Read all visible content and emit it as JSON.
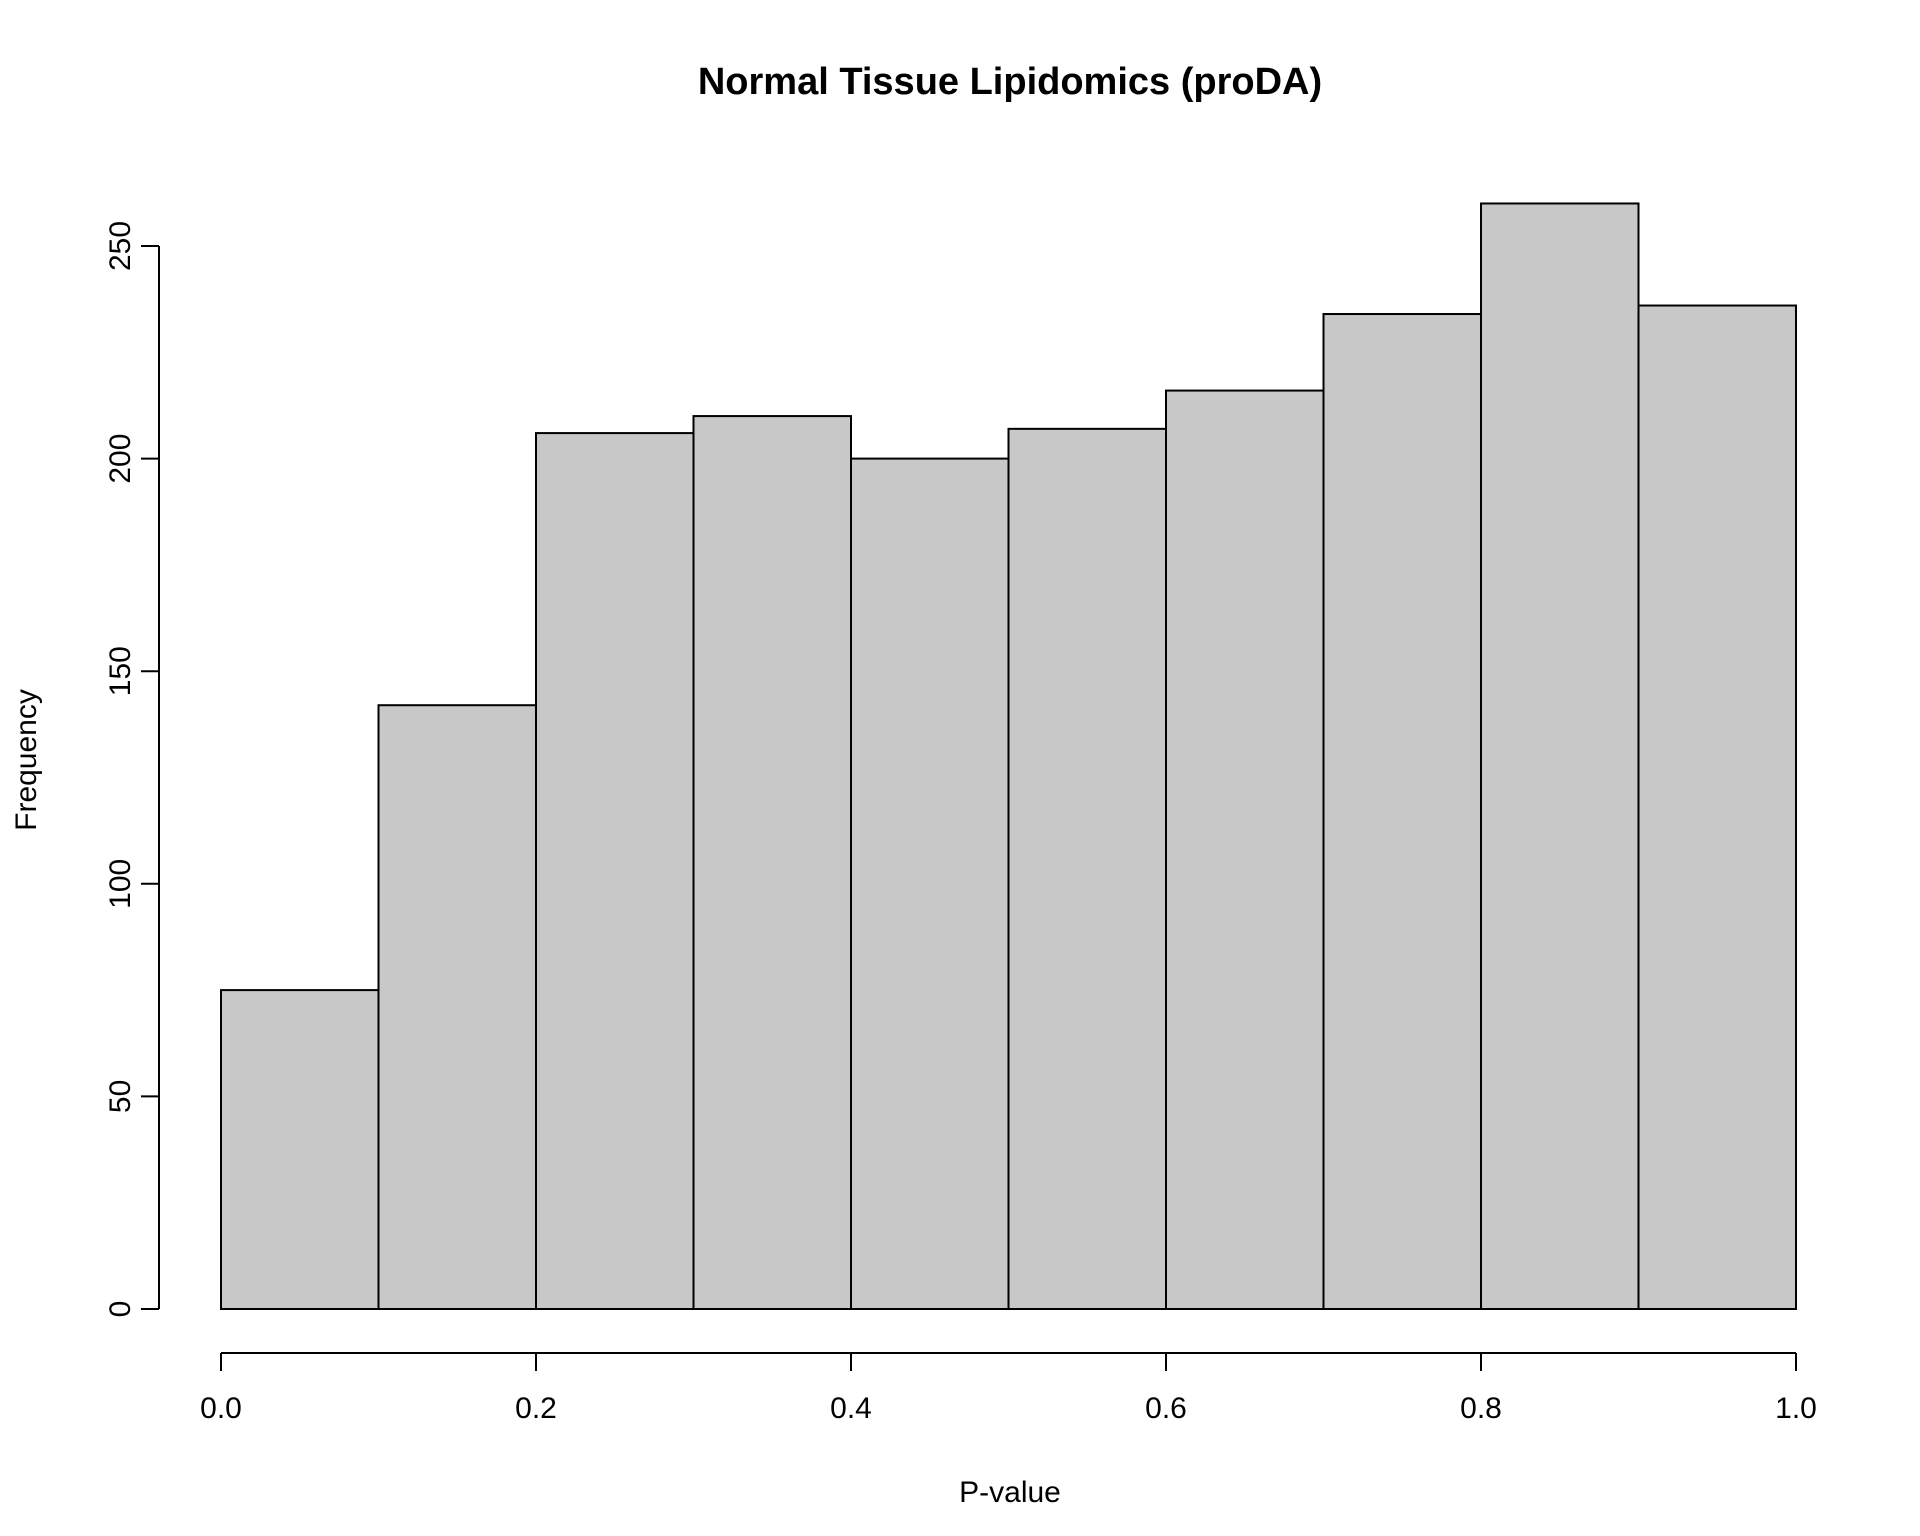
{
  "chart_data": {
    "type": "bar",
    "title": "Normal Tissue Lipidomics (proDA)",
    "xlabel": "P-value",
    "ylabel": "Frequency",
    "bin_edges": [
      0.0,
      0.1,
      0.2,
      0.3,
      0.4,
      0.5,
      0.6,
      0.7,
      0.8,
      0.9,
      1.0
    ],
    "values": [
      75,
      142,
      206,
      210,
      200,
      207,
      216,
      234,
      260,
      236
    ],
    "xlim": [
      0.0,
      1.0
    ],
    "ylim": [
      0,
      260
    ],
    "x_ticks": [
      0.0,
      0.2,
      0.4,
      0.6,
      0.8,
      1.0
    ],
    "x_tick_labels": [
      "0.0",
      "0.2",
      "0.4",
      "0.6",
      "0.8",
      "1.0"
    ],
    "y_ticks": [
      0,
      50,
      100,
      150,
      200,
      250
    ],
    "y_tick_labels": [
      "0",
      "50",
      "100",
      "150",
      "200",
      "250"
    ],
    "grid": false,
    "bar_color": "#c8c8c8",
    "bar_border_color": "#000000"
  }
}
